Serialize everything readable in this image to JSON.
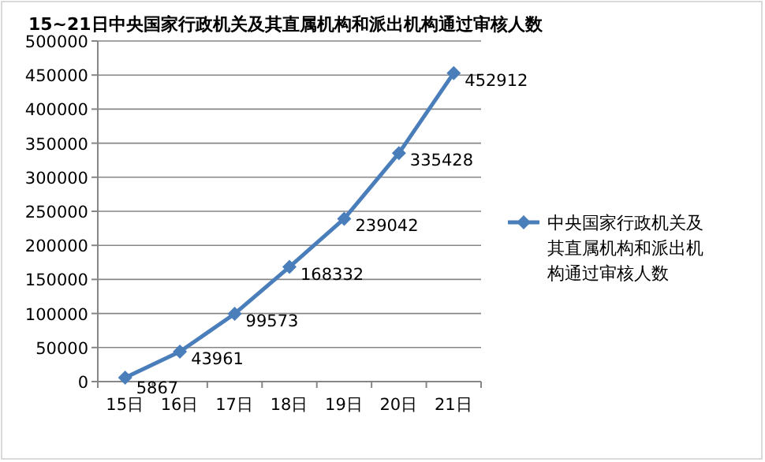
{
  "chart_data": {
    "type": "line",
    "title": "15~21日中央国家行政机关及其直属机构和派出机构通过审核人数",
    "categories": [
      "15日",
      "16日",
      "17日",
      "18日",
      "19日",
      "20日",
      "21日"
    ],
    "series": [
      {
        "name": "中央国家行政机关及其直属机构和派出机构通过审核人数",
        "color": "#4a7ebb",
        "values": [
          5867,
          43961,
          99573,
          168332,
          239042,
          335428,
          452912
        ]
      }
    ],
    "ylim": [
      0,
      500000
    ],
    "yticks": [
      0,
      50000,
      100000,
      150000,
      200000,
      250000,
      300000,
      350000,
      400000,
      450000,
      500000
    ],
    "grid": "y",
    "legend": "right",
    "marker": "diamond",
    "line_style": "solid",
    "data_labels": true
  }
}
